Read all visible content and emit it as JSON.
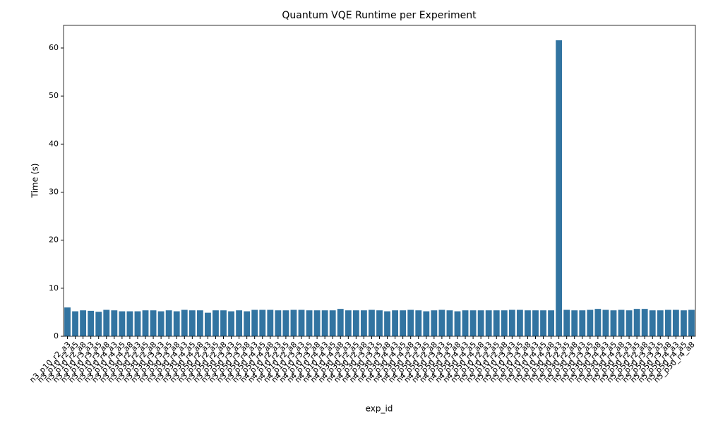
{
  "chart_data": {
    "type": "bar",
    "title": "Quantum VQE Runtime per Experiment",
    "x_label": "exp_id",
    "y_label": "Time (s)",
    "color": "#3274a1",
    "categories": [
      "n3_p10_r2_a3",
      "n3_p10_r2_a5",
      "n3_p10_r2_a8",
      "n3_p10_r3_a3",
      "n3_p10_r3_a5",
      "n3_p10_r3_a8",
      "n3_p10_r4_a3",
      "n3_p10_r4_a5",
      "n3_p10_r4_a8",
      "n3_p30_r2_a3",
      "n3_p30_r2_a5",
      "n3_p30_r2_a8",
      "n3_p30_r3_a3",
      "n3_p30_r3_a5",
      "n3_p30_r3_a8",
      "n3_p30_r4_a3",
      "n3_p30_r4_a5",
      "n3_p30_r4_a8",
      "n3_p50_r2_a3",
      "n3_p50_r2_a5",
      "n3_p50_r2_a8",
      "n3_p50_r3_a3",
      "n3_p50_r3_a5",
      "n3_p50_r3_a8",
      "n3_p50_r4_a3",
      "n3_p50_r4_a5",
      "n3_p50_r4_a8",
      "n4_p10_r2_a3",
      "n4_p10_r2_a5",
      "n4_p10_r2_a8",
      "n4_p10_r3_a3",
      "n4_p10_r3_a5",
      "n4_p10_r3_a8",
      "n4_p10_r4_a3",
      "n4_p10_r4_a5",
      "n4_p10_r4_a8",
      "n4_p30_r2_a3",
      "n4_p30_r2_a5",
      "n4_p30_r2_a8",
      "n4_p30_r3_a3",
      "n4_p30_r3_a5",
      "n4_p30_r3_a8",
      "n4_p30_r4_a3",
      "n4_p30_r4_a5",
      "n4_p30_r4_a8",
      "n4_p50_r2_a3",
      "n4_p50_r2_a5",
      "n4_p50_r2_a8",
      "n4_p50_r3_a3",
      "n4_p50_r3_a5",
      "n4_p50_r3_a8",
      "n4_p50_r4_a3",
      "n4_p50_r4_a5",
      "n4_p50_r4_a8",
      "n5_p10_r2_a3",
      "n5_p10_r2_a5",
      "n5_p10_r2_a8",
      "n5_p10_r3_a3",
      "n5_p10_r3_a5",
      "n5_p10_r3_a8",
      "n5_p10_r4_a3",
      "n5_p10_r4_a5",
      "n5_p10_r4_a8",
      "n5_p30_r2_a3",
      "n5_p30_r2_a5",
      "n5_p30_r2_a8",
      "n5_p30_r3_a3",
      "n5_p30_r3_a5",
      "n5_p30_r3_a8",
      "n5_p30_r4_a3",
      "n5_p30_r4_a5",
      "n5_p30_r4_a8",
      "n5_p50_r2_a3",
      "n5_p50_r2_a5",
      "n5_p50_r2_a8",
      "n5_p50_r3_a3",
      "n5_p50_r3_a5",
      "n5_p50_r3_a8",
      "n5_p50_r4_a3",
      "n5_p50_r4_a5",
      "n5_p50_r4_a8"
    ],
    "values": [
      6.0,
      5.2,
      5.4,
      5.3,
      5.1,
      5.5,
      5.4,
      5.2,
      5.2,
      5.2,
      5.4,
      5.4,
      5.2,
      5.4,
      5.2,
      5.5,
      5.4,
      5.4,
      4.9,
      5.4,
      5.4,
      5.2,
      5.4,
      5.2,
      5.5,
      5.5,
      5.5,
      5.4,
      5.4,
      5.5,
      5.5,
      5.4,
      5.4,
      5.4,
      5.4,
      5.7,
      5.4,
      5.4,
      5.4,
      5.5,
      5.4,
      5.2,
      5.4,
      5.4,
      5.5,
      5.4,
      5.2,
      5.4,
      5.5,
      5.4,
      5.2,
      5.4,
      5.4,
      5.4,
      5.4,
      5.4,
      5.4,
      5.5,
      5.5,
      5.4,
      5.4,
      5.4,
      5.4,
      61.6,
      5.5,
      5.4,
      5.4,
      5.5,
      5.7,
      5.5,
      5.4,
      5.5,
      5.4,
      5.7,
      5.7,
      5.4,
      5.4,
      5.5,
      5.5,
      5.4,
      5.5
    ],
    "ylim": [
      0,
      64.7
    ],
    "yticks": [
      0,
      10,
      20,
      30,
      40,
      50,
      60
    ]
  }
}
